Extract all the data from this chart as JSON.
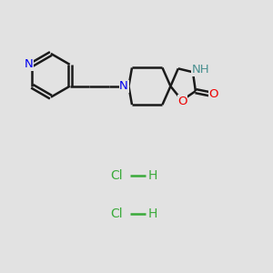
{
  "bg_color": "#e2e2e2",
  "line_color": "#1a1a1a",
  "N_color": "#0000ee",
  "O_color": "#ee0000",
  "NH_color": "#4a9090",
  "Cl_color": "#3aaa3a",
  "bond_width": 1.8,
  "font_size": 9.5,
  "hcl_font": 10,
  "fig_w": 3.0,
  "fig_h": 3.0,
  "dpi": 100,
  "xlim": [
    0,
    10
  ],
  "ylim": [
    0,
    10
  ]
}
